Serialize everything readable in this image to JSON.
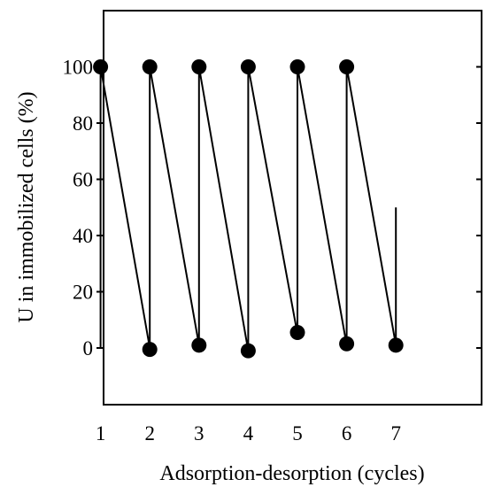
{
  "chart_data": {
    "type": "line",
    "title": "",
    "xlabel": "Adsorption-desorption (cycles)",
    "ylabel": "U in immobilized cells (%)",
    "xlim": [
      0,
      8
    ],
    "ylim": [
      -20,
      115
    ],
    "grid": false,
    "legend": "none",
    "x_ticks": [
      1,
      2,
      3,
      4,
      5,
      6,
      7
    ],
    "y_ticks": [
      0,
      20,
      40,
      60,
      80,
      100
    ],
    "series": [
      {
        "x": [
          1,
          1,
          2,
          2,
          3,
          3,
          4,
          4,
          5,
          5,
          6,
          6,
          7,
          7
        ],
        "y": [
          0,
          100,
          0,
          100,
          1,
          100,
          -1,
          100,
          5,
          100,
          1,
          100,
          1,
          50
        ],
        "markers": [
          {
            "x": 1,
            "y": 100
          },
          {
            "x": 2,
            "y": 100
          },
          {
            "x": 3,
            "y": 100
          },
          {
            "x": 4,
            "y": 100
          },
          {
            "x": 5,
            "y": 100
          },
          {
            "x": 6,
            "y": 100
          },
          {
            "x": 2,
            "y": -0.5
          },
          {
            "x": 3,
            "y": 1
          },
          {
            "x": 4,
            "y": -1
          },
          {
            "x": 5,
            "y": 5.5
          },
          {
            "x": 6,
            "y": 1.5
          },
          {
            "x": 7,
            "y": 1
          }
        ]
      }
    ],
    "colors": {
      "line": "#000000",
      "marker": "#000000"
    }
  }
}
